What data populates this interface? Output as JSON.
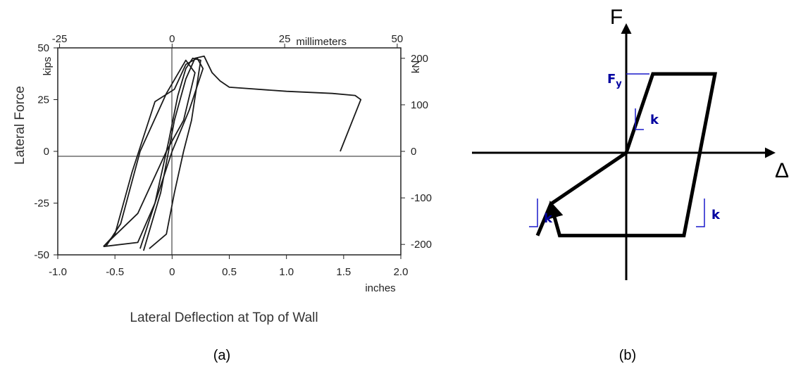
{
  "chart_data": [
    {
      "type": "line",
      "panel_label": "(a)",
      "xlabel": "Lateral Deflection at Top of Wall",
      "ylabel": "Lateral Force",
      "x_unit": "inches",
      "y_unit": "kips",
      "secondary_x_unit": "millimeters",
      "secondary_y_unit": "kN",
      "xlim": [
        -1.0,
        2.0
      ],
      "ylim": [
        -50,
        50
      ],
      "x_ticks": [
        "-1.0",
        "-0.5",
        "0",
        "0.5",
        "1.0",
        "1.5",
        "2.0"
      ],
      "y_ticks": [
        "50",
        "25",
        "0",
        "-25",
        "-50"
      ],
      "top_ticks": [
        "-25",
        "0",
        "25",
        "50"
      ],
      "right_ticks": [
        "200",
        "100",
        "0",
        "-100",
        "-200"
      ],
      "grid": false,
      "series": [
        {
          "x": [
            -0.58,
            -0.45,
            -0.28,
            -0.05,
            0.12,
            0.2,
            0.1,
            -0.05,
            -0.3,
            -0.6
          ],
          "y": [
            -46,
            -35,
            0,
            28,
            44,
            38,
            15,
            0,
            -30,
            -46
          ]
        },
        {
          "x": [
            -0.6,
            -0.5,
            -0.35,
            -0.15,
            0.02,
            0.12,
            0.22,
            0.27,
            0.15,
            0.0,
            -0.15,
            -0.3,
            -0.6
          ],
          "y": [
            -46,
            -40,
            -10,
            24,
            30,
            42,
            45,
            40,
            20,
            0,
            -25,
            -44,
            -46
          ]
        },
        {
          "x": [
            -0.28,
            -0.15,
            -0.03,
            0.05,
            0.12,
            0.18,
            0.25,
            0.17,
            0.1,
            0.02,
            -0.05,
            -0.2
          ],
          "y": [
            -47,
            -25,
            5,
            27,
            40,
            45,
            44,
            15,
            0,
            -20,
            -40,
            -47
          ]
        },
        {
          "x": [
            -0.25,
            -0.1,
            0.02,
            0.12,
            0.2,
            0.28,
            0.35,
            0.42,
            0.5,
            1.0,
            1.4,
            1.6,
            1.65,
            1.47
          ],
          "y": [
            -48,
            -20,
            15,
            35,
            45,
            46,
            38,
            34,
            31,
            29,
            28,
            27,
            25,
            0
          ]
        }
      ]
    },
    {
      "type": "line",
      "panel_label": "(b)",
      "xlabel": "Δ",
      "ylabel": "F",
      "yield_label": "F",
      "yield_subscript": "y",
      "stiffness_label": "k",
      "xlim": [
        -1.3,
        1.3
      ],
      "ylim": [
        -1.4,
        1.4
      ],
      "series": [
        {
          "x": [
            -1.0,
            -0.85,
            -0.85,
            0.0,
            0.3,
            1.0,
            0.65,
            -0.75,
            -0.85
          ],
          "y": [
            -1.05,
            -0.65,
            -0.65,
            0.0,
            1.0,
            1.0,
            -1.05,
            -1.05,
            -0.65
          ]
        }
      ]
    }
  ]
}
